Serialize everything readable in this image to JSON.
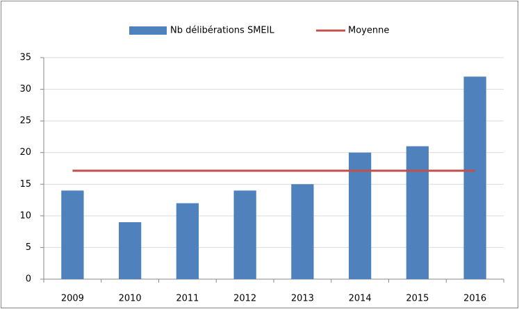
{
  "chart_data": {
    "type": "bar",
    "categories": [
      "2009",
      "2010",
      "2011",
      "2012",
      "2013",
      "2014",
      "2015",
      "2016"
    ],
    "series": [
      {
        "name": "Nb délibérations SMEIL",
        "type": "bar",
        "color": "#4f81bd",
        "values": [
          14,
          9,
          12,
          14,
          15,
          20,
          21,
          32
        ]
      },
      {
        "name": "Moyenne",
        "type": "line",
        "color": "#c0504d",
        "values": [
          17.125,
          17.125,
          17.125,
          17.125,
          17.125,
          17.125,
          17.125,
          17.125
        ]
      }
    ],
    "ylim": [
      0,
      35
    ],
    "yticks": [
      0,
      5,
      10,
      15,
      20,
      25,
      30,
      35
    ],
    "grid": true,
    "legend": "top"
  }
}
